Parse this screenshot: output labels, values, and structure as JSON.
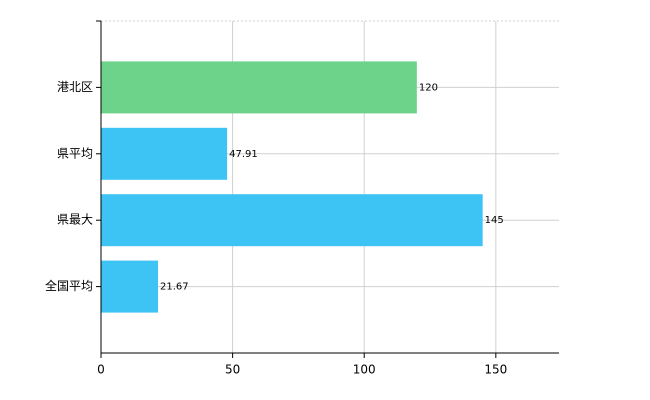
{
  "chart_data": {
    "type": "barh",
    "categories": [
      "港北区",
      "県平均",
      "県最大",
      "全国平均"
    ],
    "values": [
      120,
      47.91,
      145,
      21.67
    ],
    "colors": [
      "#6dd38b",
      "#3ec3f5",
      "#3ec3f5",
      "#3ec3f5"
    ],
    "xlim": [
      0,
      174
    ],
    "xticks": [
      0,
      50,
      100,
      150
    ],
    "grid": true
  }
}
